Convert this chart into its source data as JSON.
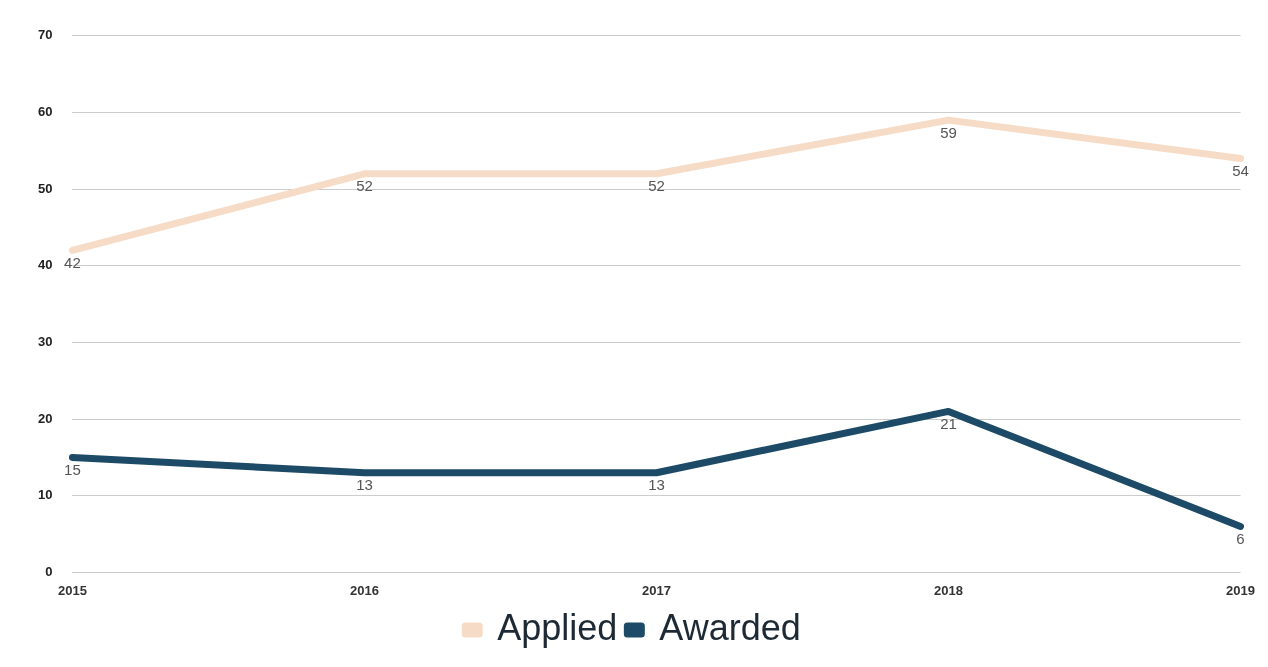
{
  "chart_data": {
    "type": "line",
    "categories": [
      "2015",
      "2016",
      "2017",
      "2018",
      "2019"
    ],
    "series": [
      {
        "name": "Applied",
        "color": "#f6dcc6",
        "values": [
          42,
          52,
          52,
          59,
          54
        ]
      },
      {
        "name": "Awarded",
        "color": "#1d4a66",
        "values": [
          15,
          13,
          13,
          21,
          6
        ]
      }
    ],
    "ylim": [
      0,
      70
    ],
    "yticks": [
      0,
      10,
      20,
      30,
      40,
      50,
      60,
      70
    ],
    "grid": "y",
    "legend": "bottom",
    "data_labels": true,
    "marker": "none",
    "line_style": "solid"
  }
}
